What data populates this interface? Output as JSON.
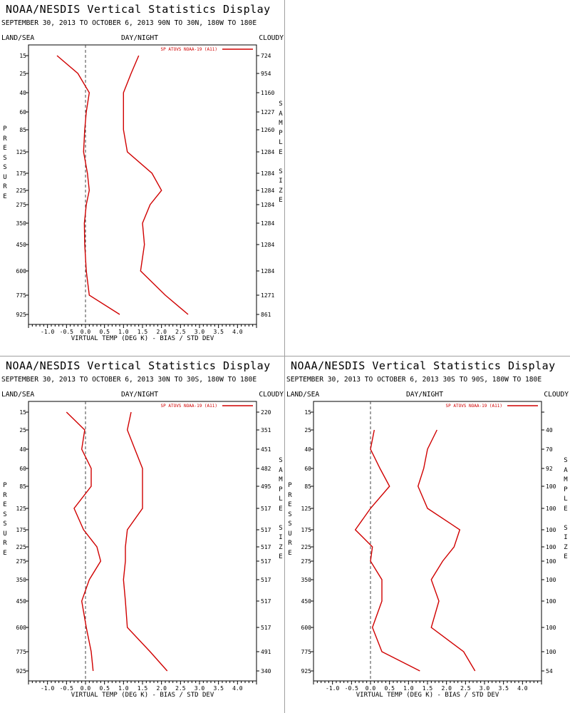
{
  "panels": [
    {
      "title": "NOAA/NESDIS Vertical Statistics Display",
      "subtitle": "SEPTEMBER 30, 2013 TO OCTOBER 6, 2013 90N TO 30N, 180W TO 180E",
      "header_left": "LAND/SEA",
      "header_mid": "DAY/NIGHT",
      "header_right": "CLOUDY",
      "ylabel": "PRESSURE",
      "y2label": "SAMPLE SIZE",
      "chart_data": {
        "type": "line",
        "xlabel": "VIRTUAL TEMP (DEG K) - BIAS / STD DEV",
        "xlim": [
          -1.5,
          4.5
        ],
        "xticks": [
          "-1.0",
          "-0.5",
          "0.0",
          "0.5",
          "1.0",
          "1.5",
          "2.0",
          "2.5",
          "3.0",
          "3.5",
          "4.0"
        ],
        "pressure_levels": [
          "15",
          "25",
          "40",
          "60",
          "85",
          "125",
          "175",
          "225",
          "275",
          "350",
          "450",
          "600",
          "775",
          "925"
        ],
        "sample_size": [
          "724",
          "954",
          "1160",
          "1227",
          "1260",
          "1284",
          "1284",
          "1284",
          "1284",
          "1284",
          "1284",
          "1284",
          "1271",
          "861"
        ],
        "legend": "SP ATOVS NOAA-19 (A11)",
        "legend_position": "top-right",
        "color": "#d00000",
        "series": [
          {
            "name": "bias",
            "values": [
              -0.75,
              -0.2,
              0.1,
              0.02,
              -0.02,
              -0.05,
              0.05,
              0.1,
              0.02,
              -0.03,
              -0.02,
              0.02,
              0.1,
              0.9
            ]
          },
          {
            "name": "std dev",
            "values": [
              1.4,
              1.2,
              1.0,
              1.0,
              1.0,
              1.1,
              1.75,
              2.0,
              1.7,
              1.5,
              1.55,
              1.45,
              2.1,
              2.7
            ]
          }
        ]
      }
    },
    {
      "title": "NOAA/NESDIS Vertical Statistics Display",
      "subtitle": "SEPTEMBER 30, 2013 TO OCTOBER 6, 2013 30N TO 30S, 180W TO 180E",
      "header_left": "LAND/SEA",
      "header_mid": "DAY/NIGHT",
      "header_right": "CLOUDY",
      "ylabel": "PRESSURE",
      "y2label": "SAMPLE SIZE",
      "chart_data": {
        "type": "line",
        "xlabel": "VIRTUAL TEMP (DEG K) - BIAS / STD DEV",
        "xlim": [
          -1.5,
          4.5
        ],
        "xticks": [
          "-1.0",
          "-0.5",
          "0.0",
          "0.5",
          "1.0",
          "1.5",
          "2.0",
          "2.5",
          "3.0",
          "3.5",
          "4.0"
        ],
        "pressure_levels": [
          "15",
          "25",
          "40",
          "60",
          "85",
          "125",
          "175",
          "225",
          "275",
          "350",
          "450",
          "600",
          "775",
          "925"
        ],
        "sample_size": [
          "220",
          "351",
          "451",
          "482",
          "495",
          "517",
          "517",
          "517",
          "517",
          "517",
          "517",
          "517",
          "491",
          "340"
        ],
        "legend": "SP ATOVS NOAA-19 (A11)",
        "legend_position": "top-right",
        "color": "#d00000",
        "series": [
          {
            "name": "bias",
            "values": [
              -0.5,
              -0.02,
              -0.1,
              0.15,
              0.15,
              -0.3,
              -0.05,
              0.3,
              0.4,
              0.1,
              -0.1,
              0.02,
              0.15,
              0.2
            ]
          },
          {
            "name": "std dev",
            "values": [
              1.2,
              1.1,
              1.3,
              1.5,
              1.5,
              1.5,
              1.1,
              1.05,
              1.05,
              1.0,
              1.05,
              1.1,
              1.7,
              2.15
            ]
          }
        ]
      }
    },
    {
      "title": "NOAA/NESDIS Vertical Statistics Display",
      "subtitle": "SEPTEMBER 30, 2013 TO OCTOBER 6, 2013 30S TO 90S, 180W TO 180E",
      "header_left": "LAND/SEA",
      "header_mid": "DAY/NIGHT",
      "header_right": "CLOUDY",
      "ylabel": "PRESSURE",
      "y2label": "SAMPLE SIZE",
      "chart_data": {
        "type": "line",
        "xlabel": "VIRTUAL TEMP (DEG K) - BIAS / STD DEV",
        "xlim": [
          -1.5,
          4.5
        ],
        "xticks": [
          "-1.0",
          "-0.5",
          "0.0",
          "0.5",
          "1.0",
          "1.5",
          "2.0",
          "2.5",
          "3.0",
          "3.5",
          "4.0"
        ],
        "pressure_levels": [
          "15",
          "25",
          "40",
          "60",
          "85",
          "125",
          "175",
          "225",
          "275",
          "350",
          "450",
          "600",
          "775",
          "925"
        ],
        "sample_size": [
          "",
          "40",
          "70",
          "92",
          "100",
          "100",
          "100",
          "100",
          "100",
          "100",
          "100",
          "100",
          "100",
          "54"
        ],
        "legend": "SP ATOVS NOAA-19 (A11)",
        "legend_position": "top-right",
        "color": "#d00000",
        "series": [
          {
            "name": "bias",
            "values": [
              null,
              0.1,
              0.0,
              0.25,
              0.5,
              0.0,
              -0.4,
              0.05,
              0.0,
              0.3,
              0.3,
              0.05,
              0.3,
              1.3
            ]
          },
          {
            "name": "std dev",
            "values": [
              null,
              1.75,
              1.5,
              1.4,
              1.25,
              1.5,
              2.35,
              2.2,
              1.9,
              1.6,
              1.8,
              1.6,
              2.45,
              2.75
            ]
          }
        ]
      }
    }
  ]
}
